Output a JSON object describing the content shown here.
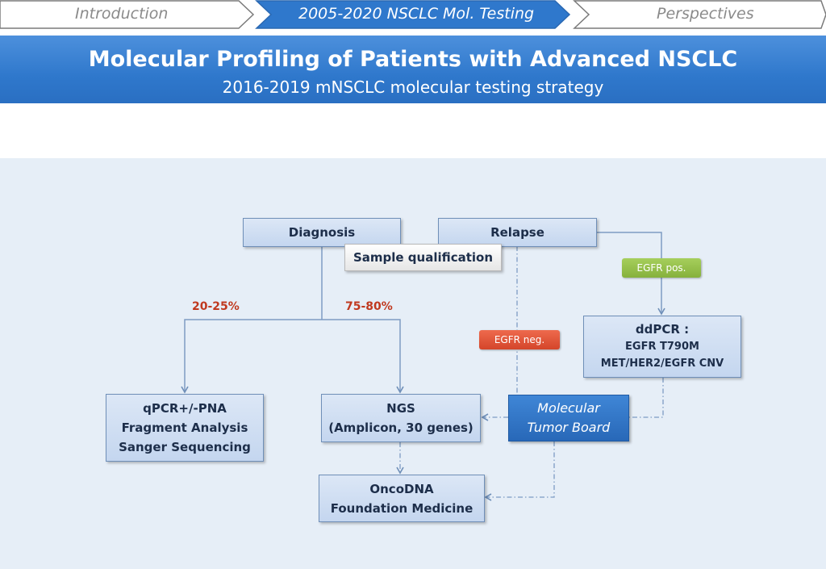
{
  "nav": {
    "tabs": [
      {
        "label": "Introduction",
        "active": false
      },
      {
        "label": "2005-2020 NSCLC Mol. Testing",
        "active": true
      },
      {
        "label": "Perspectives",
        "active": false
      }
    ]
  },
  "header": {
    "title": "Molecular Profiling of Patients with Advanced NSCLC",
    "subtitle": "2016-2019 mNSCLC molecular testing strategy"
  },
  "diagram": {
    "diagnosis": "Diagnosis",
    "relapse": "Relapse",
    "sample_qualification": "Sample qualification",
    "pct_left": "20-25%",
    "pct_right": "75-80%",
    "egfr_pos": "EGFR pos.",
    "egfr_neg": "EGFR neg.",
    "ddpcr": {
      "line1": "ddPCR :",
      "line2": "EGFR T790M",
      "line3": "MET/HER2/EGFR CNV"
    },
    "qpcr": {
      "line1": "qPCR+/-PNA",
      "line2": "Fragment Analysis",
      "line3": "Sanger Sequencing"
    },
    "ngs": {
      "line1": "NGS",
      "line2": "(Amplicon, 30 genes)"
    },
    "mtb": {
      "line1": "Molecular",
      "line2": "Tumor Board"
    },
    "onco": {
      "line1": "OncoDNA",
      "line2": "Foundation Medicine"
    }
  },
  "colors": {
    "banner": "#2f78cc",
    "nav_active": "#2f78cc",
    "node_fill": "#c4d6ef",
    "node_border": "#6f8fb8",
    "percent_red": "#c0391f",
    "tag_green": "#8fbf45",
    "tag_red": "#d94b2e",
    "connector": "#7e9cc4"
  }
}
